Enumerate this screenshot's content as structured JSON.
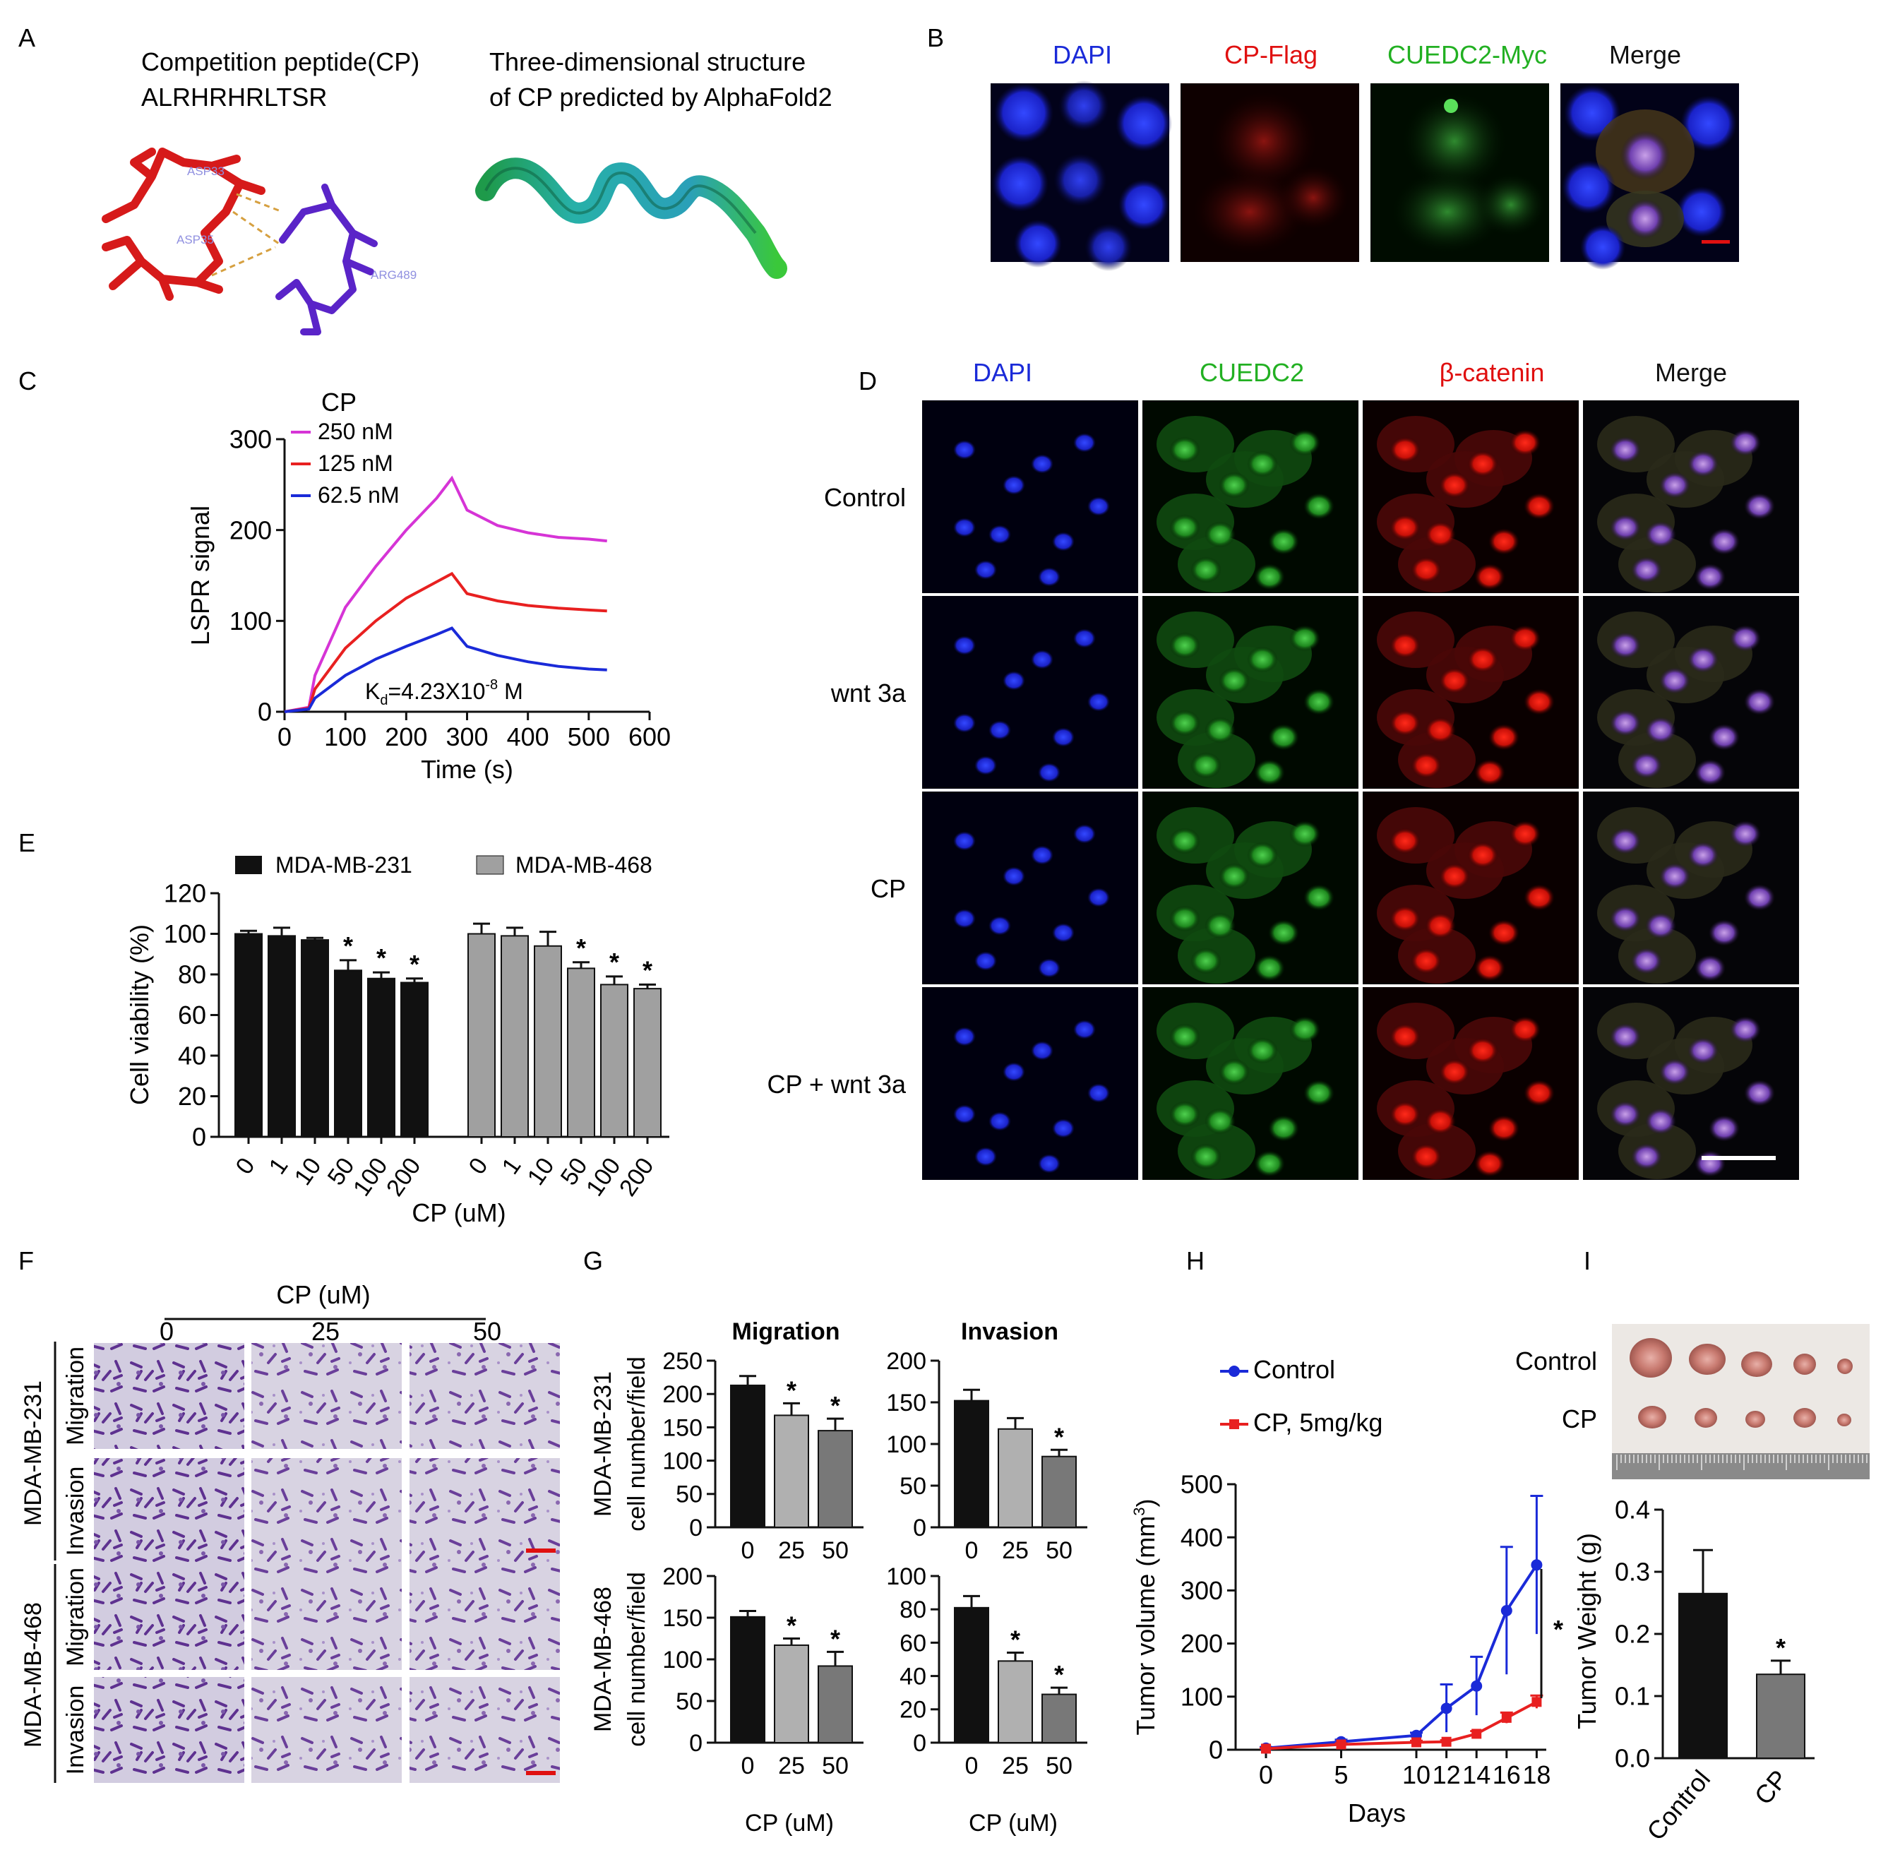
{
  "panels": {
    "a": {
      "letter": "A",
      "peptide_title": "Competition peptide(CP)",
      "sequence": "ALRHRHRLTSR",
      "structure_title_1": "Three-dimensional structure",
      "structure_title_2": "of CP predicted by AlphaFold2",
      "residues": [
        "ASP33",
        "ASP35",
        "ARG489"
      ]
    },
    "b": {
      "letter": "B",
      "channels": [
        "DAPI",
        "CP-Flag",
        "CUEDC2-Myc",
        "Merge"
      ],
      "channel_colors": [
        "#1a2ad8",
        "#e01010",
        "#22b022",
        "#111111"
      ]
    },
    "c": {
      "letter": "C",
      "kd_prefix": "K",
      "kd_sub": "d",
      "kd_value": "=4.23X10",
      "kd_exp": "-8",
      "kd_unit": " M"
    },
    "d": {
      "letter": "D",
      "channels": [
        "DAPI",
        "CUEDC2",
        "β-catenin",
        "Merge"
      ],
      "channel_colors": [
        "#1a2ad8",
        "#22b022",
        "#e01010",
        "#111111"
      ],
      "rows": [
        "Control",
        "wnt 3a",
        "CP",
        "CP + wnt  3a"
      ]
    },
    "e": {
      "letter": "E"
    },
    "f": {
      "letter": "F",
      "header": "CP (uM)",
      "doses": [
        "0",
        "25",
        "50"
      ],
      "row_labels": [
        "Migration",
        "Invasion",
        "Migration",
        "Invasion"
      ],
      "cell_lines": [
        "MDA-MB-231",
        "MDA-MB-468"
      ]
    },
    "g": {
      "letter": "G",
      "titles": [
        "Migration",
        "Invasion"
      ],
      "row_ylabels": [
        "MDA-MB-231",
        "MDA-MB-468"
      ],
      "ylabel": "cell number/field",
      "xlabel": "CP (uM)"
    },
    "h": {
      "letter": "H"
    },
    "i": {
      "letter": "I",
      "photo_labels": [
        "Control",
        "CP"
      ]
    }
  },
  "chart_data": [
    {
      "id": "C",
      "type": "line",
      "title": "CP",
      "xlabel": "Time (s)",
      "ylabel": "LSPR signal",
      "xlim": [
        0,
        600
      ],
      "ylim": [
        0,
        300
      ],
      "xticks": [
        "0",
        "100",
        "200",
        "300",
        "400",
        "500",
        "600"
      ],
      "yticks": [
        "0",
        "100",
        "200",
        "300"
      ],
      "series": [
        {
          "name": "250 nM",
          "color": "#d634d6",
          "points": [
            [
              0,
              0
            ],
            [
              40,
              5
            ],
            [
              50,
              40
            ],
            [
              100,
              115
            ],
            [
              150,
              160
            ],
            [
              200,
              200
            ],
            [
              250,
              235
            ],
            [
              275,
              257
            ],
            [
              300,
              222
            ],
            [
              350,
              205
            ],
            [
              400,
              197
            ],
            [
              450,
              192
            ],
            [
              500,
              190
            ],
            [
              530,
              188
            ]
          ]
        },
        {
          "name": "125 nM",
          "color": "#e82020",
          "points": [
            [
              0,
              0
            ],
            [
              40,
              4
            ],
            [
              50,
              25
            ],
            [
              100,
              70
            ],
            [
              150,
              100
            ],
            [
              200,
              125
            ],
            [
              250,
              143
            ],
            [
              275,
              152
            ],
            [
              300,
              130
            ],
            [
              350,
              122
            ],
            [
              400,
              117
            ],
            [
              450,
              114
            ],
            [
              500,
              112
            ],
            [
              530,
              111
            ]
          ]
        },
        {
          "name": "62.5 nM",
          "color": "#1a2ad8",
          "points": [
            [
              0,
              0
            ],
            [
              40,
              3
            ],
            [
              50,
              15
            ],
            [
              100,
              40
            ],
            [
              150,
              58
            ],
            [
              200,
              72
            ],
            [
              250,
              85
            ],
            [
              275,
              92
            ],
            [
              300,
              72
            ],
            [
              350,
              62
            ],
            [
              400,
              55
            ],
            [
              450,
              50
            ],
            [
              500,
              47
            ],
            [
              530,
              46
            ]
          ]
        }
      ]
    },
    {
      "id": "E",
      "type": "bar",
      "xlabel": "CP (uM)",
      "ylabel": "Cell viability (%)",
      "ylim": [
        0,
        120
      ],
      "yticks": [
        "0",
        "20",
        "40",
        "60",
        "80",
        "100",
        "120"
      ],
      "categories": [
        "0",
        "1",
        "10",
        "50",
        "100",
        "200"
      ],
      "significance": "*",
      "series": [
        {
          "name": "MDA-MB-231",
          "color": "#111111",
          "values": [
            100,
            99,
            97,
            82,
            78,
            76
          ],
          "errors": [
            1.5,
            4,
            1,
            5,
            3,
            2
          ],
          "significant": [
            false,
            false,
            false,
            true,
            true,
            true
          ]
        },
        {
          "name": "MDA-MB-468",
          "color": "#a0a0a0",
          "values": [
            100,
            99,
            94,
            83,
            75,
            73
          ],
          "errors": [
            5,
            4,
            7,
            3,
            4,
            2
          ],
          "significant": [
            false,
            false,
            false,
            true,
            true,
            true
          ]
        }
      ]
    },
    {
      "id": "G",
      "type": "bar",
      "xlabel": "CP (uM)",
      "ylabel": "cell number/field",
      "categories": [
        "0",
        "25",
        "50"
      ],
      "colors": [
        "#111111",
        "#b0b0b0",
        "#787878"
      ],
      "significance": "*",
      "charts": [
        {
          "title": "Migration",
          "row": "MDA-MB-231",
          "ylim": [
            0,
            250
          ],
          "yticks": [
            "0",
            "50",
            "100",
            "150",
            "200",
            "250"
          ],
          "values": [
            213,
            168,
            145
          ],
          "errors": [
            14,
            18,
            18
          ],
          "significant": [
            false,
            true,
            true
          ]
        },
        {
          "title": "Invasion",
          "row": "MDA-MB-231",
          "ylim": [
            0,
            200
          ],
          "yticks": [
            "0",
            "50",
            "100",
            "150",
            "200"
          ],
          "values": [
            152,
            118,
            85
          ],
          "errors": [
            13,
            13,
            8
          ],
          "significant": [
            false,
            false,
            true
          ]
        },
        {
          "title": "",
          "row": "MDA-MB-468",
          "ylim": [
            0,
            200
          ],
          "yticks": [
            "0",
            "50",
            "100",
            "150",
            "200"
          ],
          "values": [
            151,
            117,
            92
          ],
          "errors": [
            7,
            8,
            17
          ],
          "significant": [
            false,
            true,
            true
          ]
        },
        {
          "title": "",
          "row": "MDA-MB-468",
          "ylim": [
            0,
            100
          ],
          "yticks": [
            "0",
            "20",
            "40",
            "60",
            "80",
            "100"
          ],
          "values": [
            81,
            49,
            29
          ],
          "errors": [
            7,
            5,
            4
          ],
          "significant": [
            false,
            true,
            true
          ]
        }
      ]
    },
    {
      "id": "H",
      "type": "line",
      "xlabel": "Days",
      "ylabel": "Tumor volume (mm",
      "ylabel_sup": "3",
      "ylabel_end": ")",
      "ylim": [
        0,
        500
      ],
      "yticks": [
        "0",
        "100",
        "200",
        "300",
        "400",
        "500"
      ],
      "x": [
        "0",
        "5",
        "10",
        "12",
        "14",
        "16",
        "18"
      ],
      "significance": "*",
      "series": [
        {
          "name": "Control",
          "color": "#1a2ad8",
          "marker": "circle",
          "values": [
            3,
            15,
            27,
            78,
            120,
            262,
            348
          ],
          "errors": [
            2,
            4,
            5,
            45,
            55,
            120,
            130
          ]
        },
        {
          "name": "CP, 5mg/kg",
          "color": "#e82020",
          "marker": "square",
          "values": [
            2,
            10,
            14,
            15,
            30,
            60,
            90
          ],
          "errors": [
            1,
            2,
            3,
            3,
            5,
            10,
            12
          ]
        }
      ]
    },
    {
      "id": "I",
      "type": "bar",
      "ylabel": "Tumor Weight (g)",
      "ylim": [
        0,
        0.4
      ],
      "yticks": [
        "0.0",
        "0.1",
        "0.2",
        "0.3",
        "0.4"
      ],
      "categories": [
        "Control",
        "CP"
      ],
      "colors": [
        "#111111",
        "#787878"
      ],
      "values": [
        0.265,
        0.135
      ],
      "errors": [
        0.07,
        0.022
      ],
      "significant": [
        false,
        true
      ],
      "significance": "*"
    }
  ]
}
